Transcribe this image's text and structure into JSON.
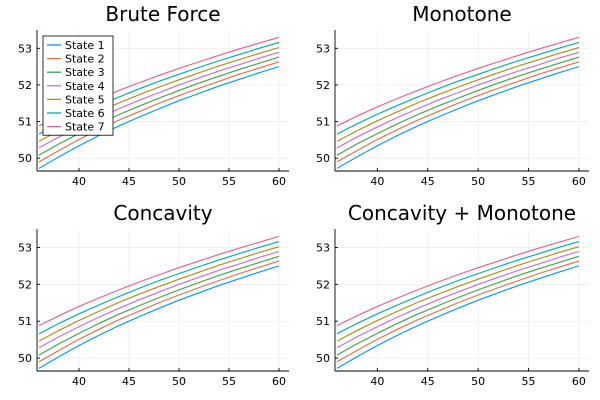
{
  "chart_data": [
    {
      "type": "line",
      "title": "Brute Force",
      "xlim": [
        35.8,
        61.0
      ],
      "ylim": [
        49.65,
        53.5
      ],
      "xticks": [
        40,
        45,
        50,
        55,
        60
      ],
      "yticks": [
        50,
        51,
        52,
        53
      ],
      "grid": true,
      "legend": "top-left",
      "x": [
        36,
        38,
        40,
        42,
        44,
        46,
        48,
        50,
        52,
        54,
        56,
        58,
        60
      ],
      "series": [
        {
          "name": "State 1",
          "values": [
            49.72,
            50.04,
            50.34,
            50.62,
            50.88,
            51.12,
            51.35,
            51.57,
            51.77,
            51.97,
            52.15,
            52.33,
            52.5
          ]
        },
        {
          "name": "State 2",
          "values": [
            49.9,
            50.21,
            50.51,
            50.78,
            51.04,
            51.27,
            51.5,
            51.71,
            51.91,
            52.1,
            52.29,
            52.46,
            52.63
          ]
        },
        {
          "name": "State 3",
          "values": [
            50.08,
            50.39,
            50.67,
            50.94,
            51.19,
            51.42,
            51.64,
            51.85,
            52.05,
            52.24,
            52.42,
            52.59,
            52.76
          ]
        },
        {
          "name": "State 4",
          "values": [
            50.28,
            50.58,
            50.85,
            51.11,
            51.35,
            51.58,
            51.79,
            52.0,
            52.19,
            52.38,
            52.55,
            52.73,
            52.89
          ]
        },
        {
          "name": "State 5",
          "values": [
            50.46,
            50.75,
            51.02,
            51.27,
            51.51,
            51.73,
            51.94,
            52.14,
            52.33,
            52.52,
            52.69,
            52.86,
            53.02
          ]
        },
        {
          "name": "State 6",
          "values": [
            50.66,
            50.94,
            51.2,
            51.44,
            51.67,
            51.89,
            52.1,
            52.29,
            52.48,
            52.66,
            52.83,
            53.0,
            53.16
          ]
        },
        {
          "name": "State 7",
          "values": [
            50.88,
            51.15,
            51.4,
            51.63,
            51.85,
            52.06,
            52.26,
            52.45,
            52.63,
            52.81,
            52.98,
            53.14,
            53.3
          ]
        }
      ]
    },
    {
      "type": "line",
      "title": "Monotone",
      "xlim": [
        35.8,
        61.0
      ],
      "ylim": [
        49.65,
        53.5
      ],
      "xticks": [
        40,
        45,
        50,
        55,
        60
      ],
      "yticks": [
        50,
        51,
        52,
        53
      ],
      "grid": true,
      "x": [
        36,
        38,
        40,
        42,
        44,
        46,
        48,
        50,
        52,
        54,
        56,
        58,
        60
      ],
      "series": [
        {
          "name": "State 1",
          "values": [
            49.72,
            50.04,
            50.34,
            50.62,
            50.88,
            51.12,
            51.35,
            51.57,
            51.77,
            51.97,
            52.15,
            52.33,
            52.5
          ]
        },
        {
          "name": "State 2",
          "values": [
            49.9,
            50.21,
            50.51,
            50.78,
            51.04,
            51.27,
            51.5,
            51.71,
            51.91,
            52.1,
            52.29,
            52.46,
            52.63
          ]
        },
        {
          "name": "State 3",
          "values": [
            50.08,
            50.39,
            50.67,
            50.94,
            51.19,
            51.42,
            51.64,
            51.85,
            52.05,
            52.24,
            52.42,
            52.59,
            52.76
          ]
        },
        {
          "name": "State 4",
          "values": [
            50.28,
            50.58,
            50.85,
            51.11,
            51.35,
            51.58,
            51.79,
            52.0,
            52.19,
            52.38,
            52.55,
            52.73,
            52.89
          ]
        },
        {
          "name": "State 5",
          "values": [
            50.46,
            50.75,
            51.02,
            51.27,
            51.51,
            51.73,
            51.94,
            52.14,
            52.33,
            52.52,
            52.69,
            52.86,
            53.02
          ]
        },
        {
          "name": "State 6",
          "values": [
            50.66,
            50.94,
            51.2,
            51.44,
            51.67,
            51.89,
            52.1,
            52.29,
            52.48,
            52.66,
            52.83,
            53.0,
            53.16
          ]
        },
        {
          "name": "State 7",
          "values": [
            50.88,
            51.15,
            51.4,
            51.63,
            51.85,
            52.06,
            52.26,
            52.45,
            52.63,
            52.81,
            52.98,
            53.14,
            53.3
          ]
        }
      ]
    },
    {
      "type": "line",
      "title": "Concavity",
      "xlim": [
        35.8,
        61.0
      ],
      "ylim": [
        49.65,
        53.5
      ],
      "xticks": [
        40,
        45,
        50,
        55,
        60
      ],
      "yticks": [
        50,
        51,
        52,
        53
      ],
      "grid": true,
      "x": [
        36,
        38,
        40,
        42,
        44,
        46,
        48,
        50,
        52,
        54,
        56,
        58,
        60
      ],
      "series": [
        {
          "name": "State 1",
          "values": [
            49.72,
            50.04,
            50.34,
            50.62,
            50.88,
            51.12,
            51.35,
            51.57,
            51.77,
            51.97,
            52.15,
            52.33,
            52.5
          ]
        },
        {
          "name": "State 2",
          "values": [
            49.9,
            50.21,
            50.51,
            50.78,
            51.04,
            51.27,
            51.5,
            51.71,
            51.91,
            52.1,
            52.29,
            52.46,
            52.63
          ]
        },
        {
          "name": "State 3",
          "values": [
            50.08,
            50.39,
            50.67,
            50.94,
            51.19,
            51.42,
            51.64,
            51.85,
            52.05,
            52.24,
            52.42,
            52.59,
            52.76
          ]
        },
        {
          "name": "State 4",
          "values": [
            50.28,
            50.58,
            50.85,
            51.11,
            51.35,
            51.58,
            51.79,
            52.0,
            52.19,
            52.38,
            52.55,
            52.73,
            52.89
          ]
        },
        {
          "name": "State 5",
          "values": [
            50.46,
            50.75,
            51.02,
            51.27,
            51.51,
            51.73,
            51.94,
            52.14,
            52.33,
            52.52,
            52.69,
            52.86,
            53.02
          ]
        },
        {
          "name": "State 6",
          "values": [
            50.66,
            50.94,
            51.2,
            51.44,
            51.67,
            51.89,
            52.1,
            52.29,
            52.48,
            52.66,
            52.83,
            53.0,
            53.16
          ]
        },
        {
          "name": "State 7",
          "values": [
            50.88,
            51.15,
            51.4,
            51.63,
            51.85,
            52.06,
            52.26,
            52.45,
            52.63,
            52.81,
            52.98,
            53.14,
            53.3
          ]
        }
      ]
    },
    {
      "type": "line",
      "title": "Concavity + Monotone",
      "xlim": [
        35.8,
        61.0
      ],
      "ylim": [
        49.65,
        53.5
      ],
      "xticks": [
        40,
        45,
        50,
        55,
        60
      ],
      "yticks": [
        50,
        51,
        52,
        53
      ],
      "grid": true,
      "x": [
        36,
        38,
        40,
        42,
        44,
        46,
        48,
        50,
        52,
        54,
        56,
        58,
        60
      ],
      "series": [
        {
          "name": "State 1",
          "values": [
            49.72,
            50.04,
            50.34,
            50.62,
            50.88,
            51.12,
            51.35,
            51.57,
            51.77,
            51.97,
            52.15,
            52.33,
            52.5
          ]
        },
        {
          "name": "State 2",
          "values": [
            49.9,
            50.21,
            50.51,
            50.78,
            51.04,
            51.27,
            51.5,
            51.71,
            51.91,
            52.1,
            52.29,
            52.46,
            52.63
          ]
        },
        {
          "name": "State 3",
          "values": [
            50.08,
            50.39,
            50.67,
            50.94,
            51.19,
            51.42,
            51.64,
            51.85,
            52.05,
            52.24,
            52.42,
            52.59,
            52.76
          ]
        },
        {
          "name": "State 4",
          "values": [
            50.28,
            50.58,
            50.85,
            51.11,
            51.35,
            51.58,
            51.79,
            52.0,
            52.19,
            52.38,
            52.55,
            52.73,
            52.89
          ]
        },
        {
          "name": "State 5",
          "values": [
            50.46,
            50.75,
            51.02,
            51.27,
            51.51,
            51.73,
            51.94,
            52.14,
            52.33,
            52.52,
            52.69,
            52.86,
            53.02
          ]
        },
        {
          "name": "State 6",
          "values": [
            50.66,
            50.94,
            51.2,
            51.44,
            51.67,
            51.89,
            52.1,
            52.29,
            52.48,
            52.66,
            52.83,
            53.0,
            53.16
          ]
        },
        {
          "name": "State 7",
          "values": [
            50.88,
            51.15,
            51.4,
            51.63,
            51.85,
            52.06,
            52.26,
            52.45,
            52.63,
            52.81,
            52.98,
            53.14,
            53.3
          ]
        }
      ]
    }
  ],
  "colors": [
    "#009AFA",
    "#E36F47",
    "#3EA44E",
    "#C371D2",
    "#AC8E18",
    "#00AAAE",
    "#ED5E93"
  ]
}
